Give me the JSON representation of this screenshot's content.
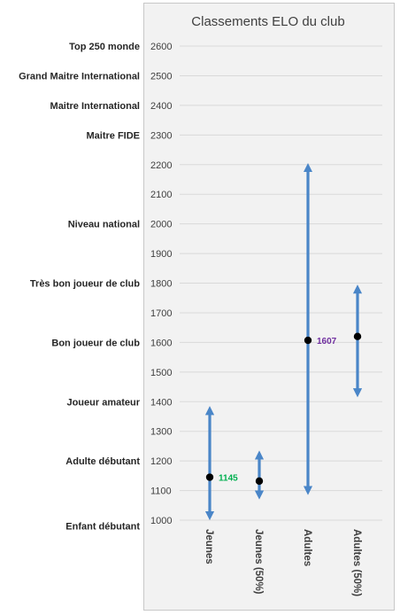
{
  "chart_data": {
    "type": "range",
    "title": "Classements ELO du club",
    "xlabel": "",
    "ylabel": "",
    "ylim": [
      1000,
      2600
    ],
    "yticks": [
      1000,
      1100,
      1200,
      1300,
      1400,
      1500,
      1600,
      1700,
      1800,
      1900,
      2000,
      2100,
      2200,
      2300,
      2400,
      2500,
      2600
    ],
    "grid": true,
    "legend": "none",
    "categories": [
      "Jeunes",
      "Jeunes (50%)",
      "Adultes",
      "Adultes (50%)"
    ],
    "ranges": [
      {
        "category": "Jeunes",
        "low": 1015,
        "high": 1370,
        "value": 1145,
        "label": "1145",
        "label_color": "#00b050"
      },
      {
        "category": "Jeunes (50%)",
        "low": 1085,
        "high": 1220,
        "value": 1132,
        "label": "",
        "label_color": ""
      },
      {
        "category": "Adultes",
        "low": 1100,
        "high": 2190,
        "value": 1607,
        "label": "1607",
        "label_color": "#7030a0"
      },
      {
        "category": "Adultes (50%)",
        "low": 1430,
        "high": 1780,
        "value": 1620,
        "label": "",
        "label_color": ""
      }
    ],
    "level_labels": [
      {
        "text": "Top 250 monde",
        "value": 2600
      },
      {
        "text": "Grand Maitre International",
        "value": 2500
      },
      {
        "text": "Maitre International",
        "value": 2400
      },
      {
        "text": "Maitre FIDE",
        "value": 2300
      },
      {
        "text": "Niveau national",
        "value": 2000
      },
      {
        "text": "Très bon joueur de club",
        "value": 1800
      },
      {
        "text": "Bon joueur de club",
        "value": 1600
      },
      {
        "text": "Joueur amateur",
        "value": 1400
      },
      {
        "text": "Adulte débutant",
        "value": 1200
      },
      {
        "text": "Enfant débutant",
        "value": 980
      }
    ],
    "colors": {
      "arrow": "#4a86c8",
      "marker": "#000000",
      "grid": "#d9d9d9",
      "frame": "#c8c8c8",
      "plot_bg": "#f2f2f2"
    }
  }
}
